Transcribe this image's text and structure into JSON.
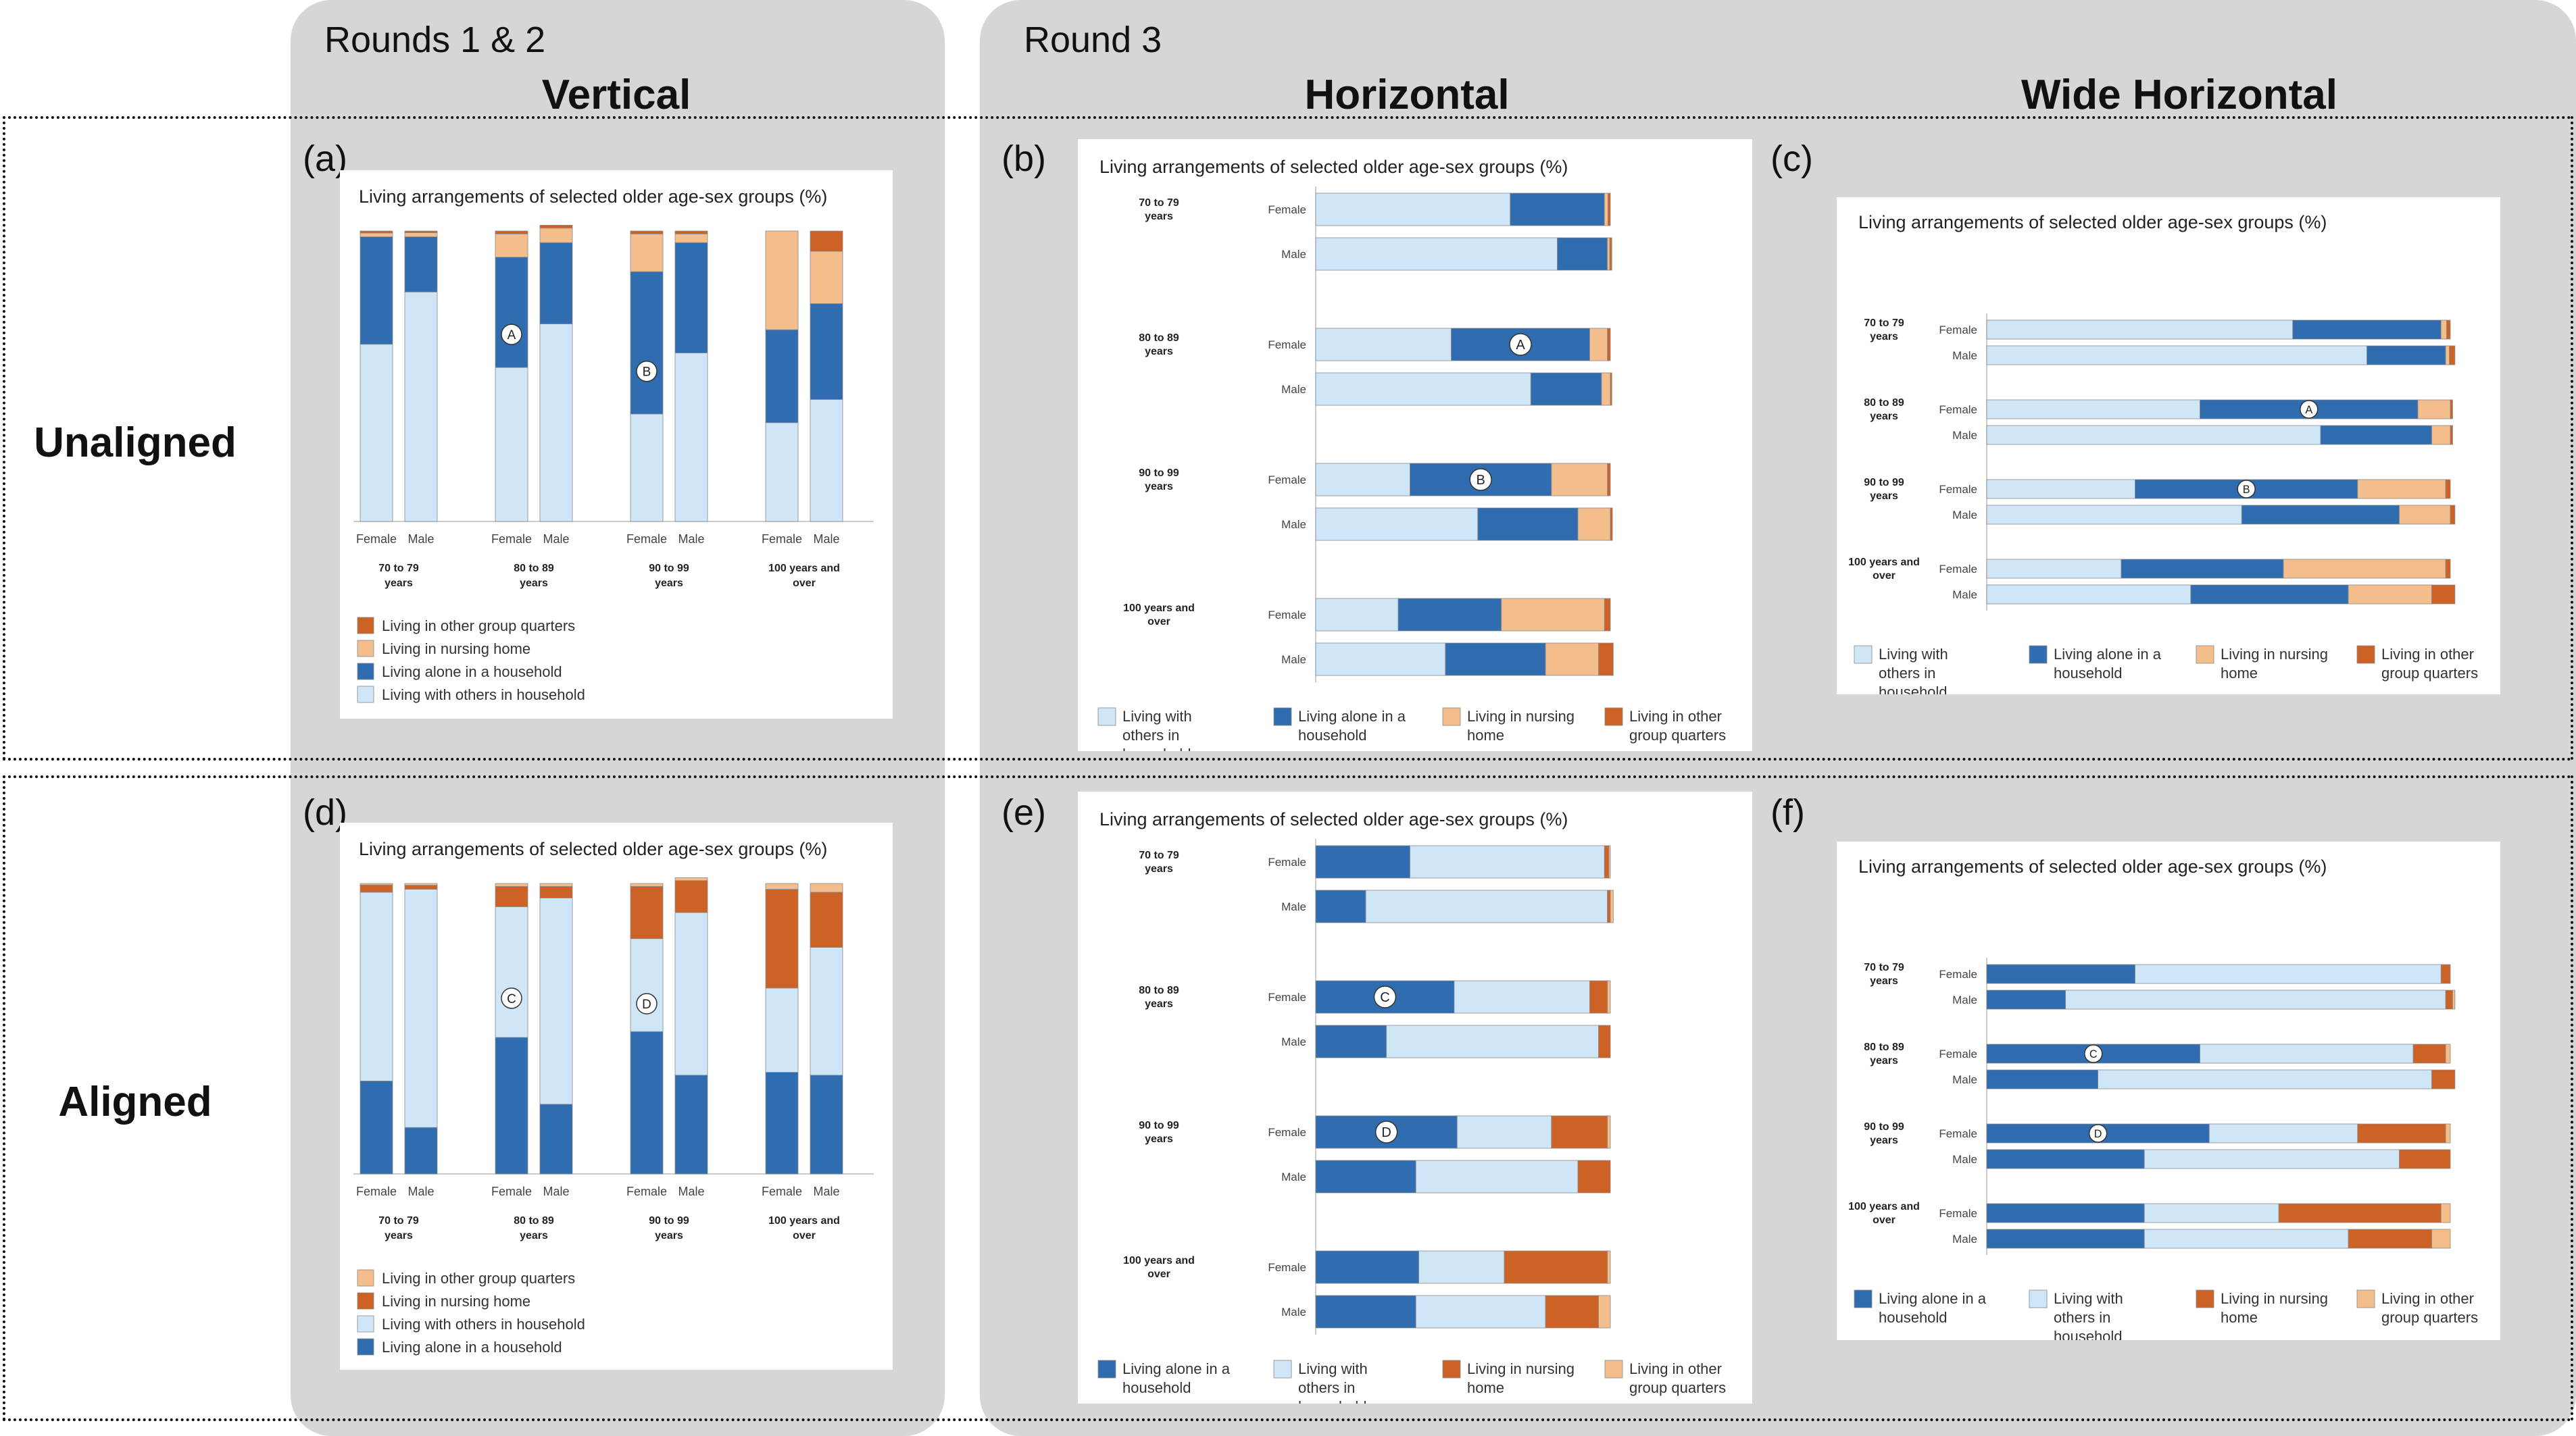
{
  "labels": {
    "round12": "Rounds 1 & 2",
    "round3": "Round 3",
    "col_vertical": "Vertical",
    "col_horizontal": "Horizontal",
    "col_wide": "Wide Horizontal",
    "row_unaligned": "Unaligned",
    "row_aligned": "Aligned"
  },
  "colors": {
    "with_others": "#cfe6f8",
    "alone": "#2f6db0",
    "nursing": "#f3bd8c",
    "group": "#cc6225"
  },
  "chart_data": [
    {
      "id": "a",
      "type": "bar",
      "orientation": "vertical",
      "stacked": true,
      "panel_label": "(a)",
      "title": "Living arrangements of selected older age-sex groups (%)",
      "groups": [
        "70 to 79 years",
        "80 to 89 years",
        "90 to 99 years",
        "100 years and over"
      ],
      "categories": [
        "Female",
        "Male"
      ],
      "series": [
        {
          "name": "Living with others in household",
          "color": "#cfe6f8",
          "values": [
            [
              61,
              79
            ],
            [
              53,
              68
            ],
            [
              37,
              58
            ],
            [
              34,
              42
            ]
          ]
        },
        {
          "name": "Living alone in a household",
          "color": "#2f6db0",
          "values": [
            [
              37,
              19
            ],
            [
              38,
              28
            ],
            [
              49,
              38
            ],
            [
              32,
              33
            ]
          ]
        },
        {
          "name": "Living in nursing home",
          "color": "#f3bd8c",
          "values": [
            [
              1.3,
              1.4
            ],
            [
              8,
              5
            ],
            [
              13,
              3
            ],
            [
              34,
              18
            ]
          ]
        },
        {
          "name": "Living in other group quarters",
          "color": "#cc6225",
          "values": [
            [
              0.7,
              0.6
            ],
            [
              1,
              1
            ],
            [
              1,
              1
            ],
            [
              0,
              7
            ]
          ]
        }
      ],
      "legend": [
        "Living in other group quarters",
        "Living in nursing home",
        "Living alone in a household",
        "Living with others in household"
      ],
      "annotations": [
        {
          "label": "A",
          "group": "80 to 89 years",
          "category": "Female"
        },
        {
          "label": "B",
          "group": "90 to 99 years",
          "category": "Female"
        }
      ]
    },
    {
      "id": "b",
      "type": "bar",
      "orientation": "horizontal",
      "stacked": true,
      "panel_label": "(b)",
      "title": "Living arrangements of selected older age-sex groups (%)",
      "groups": [
        "70 to 79 years",
        "80 to 89 years",
        "90 to 99 years",
        "100 years and over"
      ],
      "categories": [
        "Female",
        "Male"
      ],
      "series": [
        {
          "name": "Living with others in household",
          "color": "#cfe6f8",
          "values": [
            [
              66,
              82
            ],
            [
              46,
              73
            ],
            [
              32,
              55
            ],
            [
              28,
              44
            ]
          ]
        },
        {
          "name": "Living alone in a household",
          "color": "#2f6db0",
          "values": [
            [
              32,
              17
            ],
            [
              47,
              24
            ],
            [
              48,
              34
            ],
            [
              35,
              34
            ]
          ]
        },
        {
          "name": "Living in nursing home",
          "color": "#f3bd8c",
          "values": [
            [
              1.2,
              0.8
            ],
            [
              6,
              3
            ],
            [
              19,
              11
            ],
            [
              35,
              18
            ]
          ]
        },
        {
          "name": "Living in other group quarters",
          "color": "#cc6225",
          "values": [
            [
              0.8,
              0.7
            ],
            [
              1,
              0.5
            ],
            [
              1,
              0.7
            ],
            [
              2,
              5
            ]
          ]
        }
      ],
      "legend": [
        "Living with others in household",
        "Living alone in a household",
        "Living in nursing home",
        "Living in other group quarters"
      ],
      "annotations": [
        {
          "label": "A",
          "group": "80 to 89 years",
          "category": "Female"
        },
        {
          "label": "B",
          "group": "90 to 99 years",
          "category": "Female"
        }
      ]
    },
    {
      "id": "c",
      "type": "bar",
      "orientation": "horizontal",
      "stacked": true,
      "panel_label": "(c)",
      "title": "Living arrangements of selected older age-sex groups (%)",
      "groups": [
        "70 to 79 years",
        "80 to 89 years",
        "90 to 99 years",
        "100 years and over"
      ],
      "categories": [
        "Female",
        "Male"
      ],
      "series": [
        {
          "name": "Living with others in household",
          "color": "#cfe6f8",
          "values": [
            [
              66,
              82
            ],
            [
              46,
              72
            ],
            [
              32,
              55
            ],
            [
              29,
              44
            ]
          ]
        },
        {
          "name": "Living alone in a household",
          "color": "#2f6db0",
          "values": [
            [
              32,
              17
            ],
            [
              47,
              24
            ],
            [
              48,
              34
            ],
            [
              35,
              34
            ]
          ]
        },
        {
          "name": "Living in nursing home",
          "color": "#f3bd8c",
          "values": [
            [
              1.2,
              0.8
            ],
            [
              7,
              4
            ],
            [
              19,
              11
            ],
            [
              35,
              18
            ]
          ]
        },
        {
          "name": "Living in other group quarters",
          "color": "#cc6225",
          "values": [
            [
              0.8,
              1.2
            ],
            [
              0.5,
              0.5
            ],
            [
              1,
              1
            ],
            [
              1,
              5
            ]
          ]
        }
      ],
      "legend": [
        "Living with others in household",
        "Living alone in a household",
        "Living in nursing home",
        "Living in other group quarters"
      ],
      "annotations": [
        {
          "label": "A",
          "group": "80 to 89 years",
          "category": "Female"
        },
        {
          "label": "B",
          "group": "90 to 99 years",
          "category": "Female"
        }
      ]
    },
    {
      "id": "d",
      "type": "bar",
      "orientation": "vertical",
      "stacked": true,
      "panel_label": "(d)",
      "title": "Living arrangements of selected older age-sex groups (%)",
      "groups": [
        "70 to 79 years",
        "80 to 89 years",
        "90 to 99 years",
        "100 years and over"
      ],
      "categories": [
        "Female",
        "Male"
      ],
      "series": [
        {
          "name": "Living alone in a household",
          "color": "#2f6db0",
          "values": [
            [
              32,
              16
            ],
            [
              47,
              24
            ],
            [
              49,
              34
            ],
            [
              35,
              34
            ]
          ]
        },
        {
          "name": "Living with others in household",
          "color": "#cfe6f8",
          "values": [
            [
              65,
              82
            ],
            [
              45,
              71
            ],
            [
              32,
              56
            ],
            [
              29,
              44
            ]
          ]
        },
        {
          "name": "Living in nursing home",
          "color": "#cc6225",
          "values": [
            [
              2.5,
              1.4
            ],
            [
              7,
              4
            ],
            [
              18,
              11
            ],
            [
              34,
              19
            ]
          ]
        },
        {
          "name": "Living in other group quarters",
          "color": "#f3bd8c",
          "values": [
            [
              0.5,
              0.6
            ],
            [
              1,
              1
            ],
            [
              1,
              1
            ],
            [
              2,
              3
            ]
          ]
        }
      ],
      "legend": [
        "Living in other group quarters",
        "Living in nursing home",
        "Living with others in household",
        "Living alone in a household"
      ],
      "annotations": [
        {
          "label": "C",
          "group": "80 to 89 years",
          "category": "Female"
        },
        {
          "label": "D",
          "group": "90 to 99 years",
          "category": "Female"
        }
      ]
    },
    {
      "id": "e",
      "type": "bar",
      "orientation": "horizontal",
      "stacked": true,
      "panel_label": "(e)",
      "title": "Living arrangements of selected older age-sex groups (%)",
      "groups": [
        "70 to 79 years",
        "80 to 89 years",
        "90 to 99 years",
        "100 years and over"
      ],
      "categories": [
        "Female",
        "Male"
      ],
      "series": [
        {
          "name": "Living alone in a household",
          "color": "#2f6db0",
          "values": [
            [
              32,
              17
            ],
            [
              47,
              24
            ],
            [
              48,
              34
            ],
            [
              35,
              34
            ]
          ]
        },
        {
          "name": "Living with others in household",
          "color": "#cfe6f8",
          "values": [
            [
              66,
              82
            ],
            [
              46,
              72
            ],
            [
              32,
              55
            ],
            [
              29,
              44
            ]
          ]
        },
        {
          "name": "Living in nursing home",
          "color": "#cc6225",
          "values": [
            [
              1.5,
              1
            ],
            [
              6,
              4
            ],
            [
              19,
              11
            ],
            [
              35,
              18
            ]
          ]
        },
        {
          "name": "Living in other group quarters",
          "color": "#f3bd8c",
          "values": [
            [
              0.5,
              1
            ],
            [
              1,
              0
            ],
            [
              1,
              0
            ],
            [
              1,
              4
            ]
          ]
        }
      ],
      "legend": [
        "Living alone in a household",
        "Living with others in household",
        "Living in nursing home",
        "Living in other group quarters"
      ],
      "annotations": [
        {
          "label": "C",
          "group": "80 to 89 years",
          "category": "Female"
        },
        {
          "label": "D",
          "group": "90 to 99 years",
          "category": "Female"
        }
      ]
    },
    {
      "id": "f",
      "type": "bar",
      "orientation": "horizontal",
      "stacked": true,
      "panel_label": "(f)",
      "title": "Living arrangements of selected older age-sex groups (%)",
      "groups": [
        "70 to 79 years",
        "80 to 89 years",
        "90 to 99 years",
        "100 years and over"
      ],
      "categories": [
        "Female",
        "Male"
      ],
      "series": [
        {
          "name": "Living alone in a household",
          "color": "#2f6db0",
          "values": [
            [
              32,
              17
            ],
            [
              46,
              24
            ],
            [
              48,
              34
            ],
            [
              34,
              34
            ]
          ]
        },
        {
          "name": "Living with others in household",
          "color": "#cfe6f8",
          "values": [
            [
              66,
              82
            ],
            [
              46,
              72
            ],
            [
              32,
              55
            ],
            [
              29,
              44
            ]
          ]
        },
        {
          "name": "Living in nursing home",
          "color": "#cc6225",
          "values": [
            [
              2,
              1.5
            ],
            [
              7,
              5
            ],
            [
              19,
              11
            ],
            [
              35,
              18
            ]
          ]
        },
        {
          "name": "Living in other group quarters",
          "color": "#f3bd8c",
          "values": [
            [
              0,
              0.5
            ],
            [
              1,
              0
            ],
            [
              1,
              0
            ],
            [
              2,
              4
            ]
          ]
        }
      ],
      "legend": [
        "Living alone in a household",
        "Living with others in household",
        "Living in nursing home",
        "Living in other group quarters"
      ],
      "annotations": [
        {
          "label": "C",
          "group": "80 to 89 years",
          "category": "Female"
        },
        {
          "label": "D",
          "group": "90 to 99 years",
          "category": "Female"
        }
      ]
    }
  ]
}
